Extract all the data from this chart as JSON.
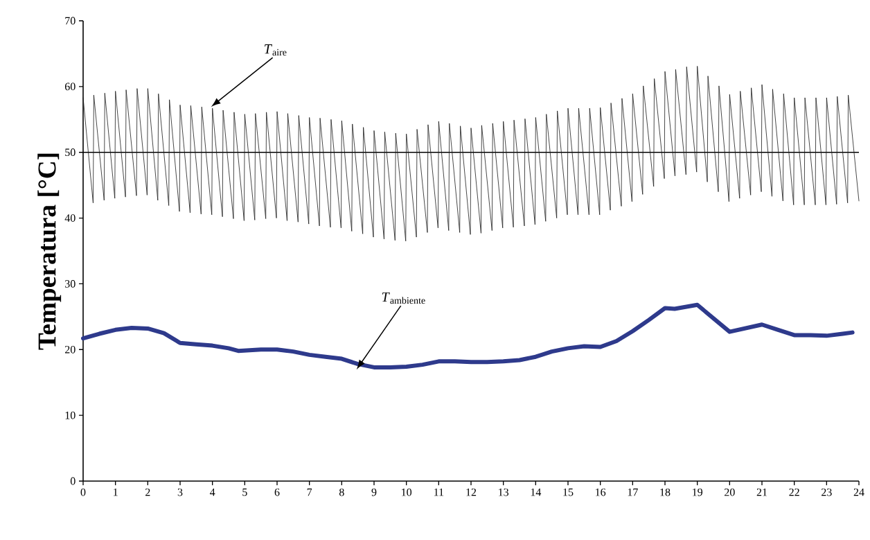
{
  "chart_data": {
    "type": "line",
    "ylabel": "Temperatura [°C]",
    "xlim": [
      0,
      24
    ],
    "xticks": [
      0,
      1,
      2,
      3,
      4,
      5,
      6,
      7,
      8,
      9,
      10,
      11,
      12,
      13,
      14,
      15,
      16,
      17,
      18,
      19,
      20,
      21,
      22,
      23,
      24
    ],
    "ylim": [
      0,
      70
    ],
    "yticks": [
      0,
      10,
      20,
      30,
      40,
      50,
      60,
      70
    ],
    "grid": false,
    "marker": "none",
    "line_style": "solid",
    "ref_lines": [
      {
        "axis": "y",
        "value": 50,
        "color": "#000000"
      }
    ],
    "series": [
      {
        "name": "*T*$_{aire}$",
        "color": "#1a1a1a",
        "x": [
          0,
          0.31,
          0.33,
          0.65,
          0.67,
          0.98,
          1,
          1.31,
          1.33,
          1.65,
          1.67,
          1.98,
          2,
          2.31,
          2.33,
          2.65,
          2.67,
          2.98,
          3,
          3.31,
          3.33,
          3.65,
          3.67,
          3.98,
          4,
          4.31,
          4.33,
          4.65,
          4.67,
          4.98,
          5,
          5.31,
          5.33,
          5.65,
          5.67,
          5.98,
          6,
          6.31,
          6.33,
          6.65,
          6.67,
          6.98,
          7,
          7.31,
          7.33,
          7.65,
          7.67,
          7.98,
          8,
          8.31,
          8.33,
          8.65,
          8.67,
          8.98,
          9,
          9.31,
          9.33,
          9.65,
          9.67,
          9.98,
          10,
          10.31,
          10.33,
          10.65,
          10.67,
          10.98,
          11,
          11.31,
          11.33,
          11.65,
          11.67,
          11.98,
          12,
          12.31,
          12.33,
          12.65,
          12.67,
          12.98,
          13,
          13.31,
          13.33,
          13.65,
          13.67,
          13.98,
          14,
          14.31,
          14.33,
          14.65,
          14.67,
          14.98,
          15,
          15.31,
          15.33,
          15.65,
          15.67,
          15.98,
          16,
          16.31,
          16.33,
          16.65,
          16.67,
          16.98,
          17,
          17.31,
          17.33,
          17.65,
          17.67,
          17.98,
          18,
          18.31,
          18.33,
          18.65,
          18.67,
          18.98,
          19,
          19.31,
          19.33,
          19.65,
          19.67,
          19.98,
          20,
          20.31,
          20.33,
          20.65,
          20.67,
          20.98,
          21,
          21.31,
          21.33,
          21.65,
          21.67,
          21.98,
          22,
          22.31,
          22.33,
          22.65,
          22.67,
          22.98,
          23,
          23.31,
          23.33,
          23.65,
          23.67,
          24
        ],
        "values": [
          58.3,
          42.3,
          58.7,
          42.7,
          59.0,
          43.0,
          59.3,
          43.2,
          59.5,
          43.4,
          59.7,
          43.5,
          59.7,
          42.7,
          58.9,
          41.9,
          58.0,
          41.0,
          57.2,
          40.8,
          57.1,
          40.6,
          56.9,
          40.5,
          56.7,
          40.2,
          56.4,
          39.9,
          56.1,
          39.6,
          55.8,
          39.7,
          55.9,
          39.9,
          56.1,
          40.0,
          56.2,
          39.6,
          55.9,
          39.4,
          55.6,
          39.1,
          55.3,
          38.8,
          55.2,
          38.6,
          55.0,
          38.5,
          54.8,
          38.0,
          54.3,
          37.6,
          53.8,
          37.1,
          53.3,
          36.8,
          53.1,
          36.6,
          52.9,
          36.5,
          52.8,
          37.1,
          53.5,
          37.8,
          54.2,
          38.5,
          54.7,
          38.1,
          54.4,
          37.8,
          54.0,
          37.5,
          53.7,
          37.7,
          54.1,
          38.1,
          54.4,
          38.5,
          54.7,
          38.6,
          54.9,
          38.8,
          55.1,
          39.0,
          55.3,
          39.5,
          55.8,
          40.0,
          56.3,
          40.5,
          56.7,
          40.5,
          56.7,
          40.5,
          56.7,
          40.5,
          56.8,
          41.2,
          57.5,
          41.8,
          58.2,
          42.5,
          58.9,
          43.6,
          60.1,
          44.8,
          61.2,
          46.0,
          62.3,
          46.4,
          62.6,
          46.6,
          63.0,
          47.0,
          63.1,
          45.5,
          61.6,
          44.0,
          60.1,
          42.5,
          58.8,
          43.0,
          59.3,
          43.5,
          59.8,
          44.0,
          60.3,
          43.3,
          59.6,
          42.6,
          58.9,
          42.0,
          58.3,
          42.0,
          58.3,
          42.0,
          58.3,
          42.0,
          58.3,
          42.1,
          58.5,
          42.3,
          58.7,
          42.6
        ]
      },
      {
        "name": "*T*$_{ambiente}$",
        "color": "#2e3a8c",
        "x": [
          0,
          0.5,
          1,
          1.5,
          2,
          2.5,
          3,
          3.5,
          4,
          4.5,
          4.8,
          5.5,
          6,
          6.5,
          7,
          7.5,
          8,
          8.5,
          9,
          9.5,
          10,
          10.5,
          11,
          11.5,
          12,
          12.5,
          13,
          13.5,
          14,
          14.5,
          15,
          15.5,
          16,
          16.5,
          17,
          17.5,
          18,
          18.3,
          19,
          20,
          21,
          21.5,
          22,
          22.5,
          23,
          23.5,
          23.8
        ],
        "values": [
          21.7,
          22.4,
          23.0,
          23.3,
          23.2,
          22.5,
          21.0,
          20.8,
          20.6,
          20.2,
          19.8,
          20.0,
          20.0,
          19.7,
          19.2,
          18.9,
          18.6,
          17.8,
          17.3,
          17.3,
          17.4,
          17.7,
          18.2,
          18.2,
          18.1,
          18.1,
          18.2,
          18.4,
          18.9,
          19.7,
          20.2,
          20.5,
          20.4,
          21.3,
          22.8,
          24.5,
          26.3,
          26.2,
          26.8,
          22.7,
          23.8,
          23.0,
          22.2,
          22.2,
          22.1,
          22.4,
          22.6
        ]
      }
    ]
  }
}
